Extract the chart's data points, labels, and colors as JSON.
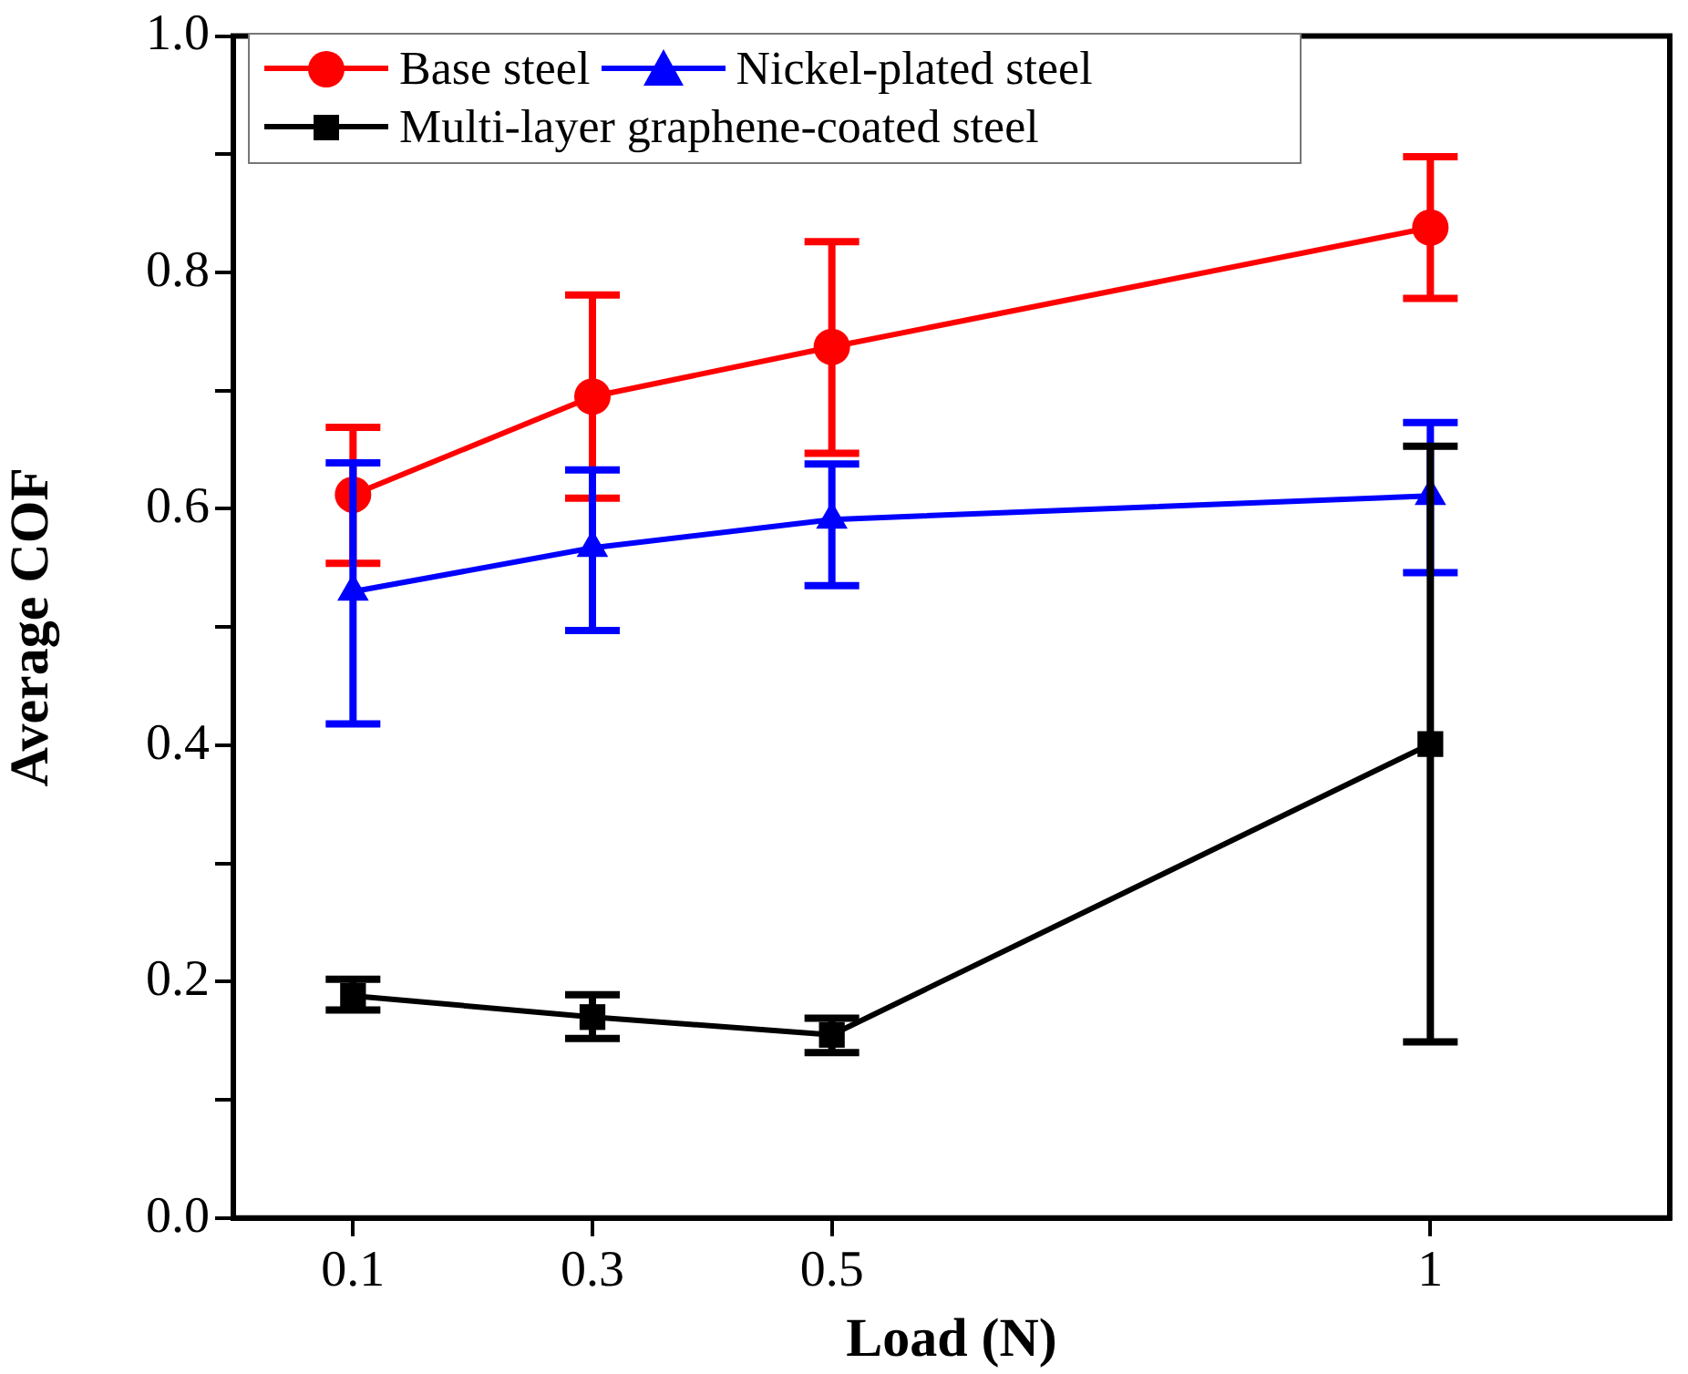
{
  "chart_data": {
    "type": "line",
    "xlabel": "Load (N)",
    "ylabel": "Average COF",
    "x": [
      0.1,
      0.3,
      0.5,
      1
    ],
    "xlim": [
      0,
      1.2
    ],
    "xticks": [
      0.1,
      0.3,
      0.5,
      1
    ],
    "ylim": [
      0,
      1
    ],
    "yticks": [
      {
        "value": 0,
        "label": "0.0"
      },
      {
        "value": 0.1,
        "label": null
      },
      0.2,
      {
        "value": 0.3,
        "label": null
      },
      0.4,
      {
        "value": 0.5,
        "label": null
      },
      0.6,
      {
        "value": 0.7,
        "label": null
      },
      0.8,
      {
        "value": 0.9,
        "label": null
      },
      {
        "value": 1,
        "label": "1.0"
      }
    ],
    "grid": false,
    "legend": "top left",
    "line_style": "solid",
    "series": [
      {
        "name": "Base steel",
        "color": "#ff0000",
        "marker": "circle",
        "values": [
          0.612,
          0.695,
          0.737,
          0.838
        ],
        "errors": [
          [
            0.554,
            0.669
          ],
          [
            0.609,
            0.781
          ],
          [
            0.647,
            0.826
          ],
          [
            0.778,
            0.898
          ]
        ]
      },
      {
        "name": "Nickel-plated steel",
        "color": "#0000ff",
        "marker": "triangle",
        "values": [
          0.53,
          0.567,
          0.591,
          0.611
        ],
        "errors": [
          [
            0.418,
            0.639
          ],
          [
            0.497,
            0.633
          ],
          [
            0.535,
            0.638
          ],
          [
            0.546,
            0.673
          ]
        ]
      },
      {
        "name": "Multi-layer graphene-coated steel",
        "color": "#000000",
        "marker": "square",
        "values": [
          0.188,
          0.17,
          0.155,
          0.401
        ],
        "errors": [
          [
            0.176,
            0.202
          ],
          [
            0.152,
            0.189
          ],
          [
            0.14,
            0.169
          ],
          [
            0.149,
            0.653
          ]
        ]
      }
    ]
  }
}
